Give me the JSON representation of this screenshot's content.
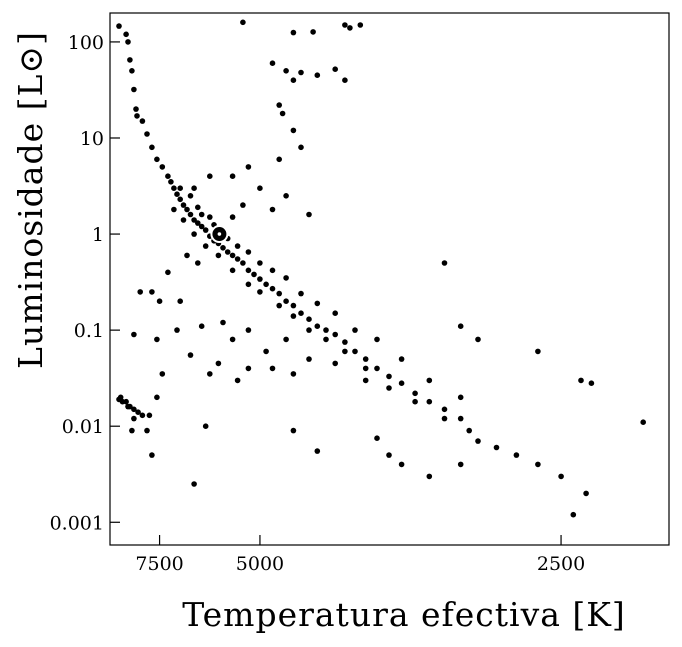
{
  "chart_data": {
    "type": "scatter",
    "title": "",
    "xlabel": "Temperatura efectiva [K]",
    "ylabel": "Luminosidade [L⊙]",
    "x_scale": "reciprocal",
    "y_scale": "log",
    "xlim": [
      9960,
      2120
    ],
    "ylim": [
      0.00058,
      200
    ],
    "x_ticks": [
      7500,
      5000,
      2500
    ],
    "x_tick_labels": [
      "7500",
      "5000",
      "2500"
    ],
    "y_ticks": [
      0.001,
      0.01,
      0.1,
      1,
      10,
      100
    ],
    "y_tick_labels": [
      "0.001",
      "0.01",
      "0.1",
      "1",
      "10",
      "100"
    ],
    "grid": false,
    "legend": "none",
    "marker_color": "#000000",
    "sun": {
      "x": 5778,
      "y": 1.0,
      "label": "⊙"
    },
    "series": [
      {
        "values_format": "[temperature K, luminosity L⊙]",
        "points": [
          [
            9400,
            146
          ],
          [
            9000,
            120
          ],
          [
            8900,
            100
          ],
          [
            8800,
            65
          ],
          [
            8700,
            50
          ],
          [
            8600,
            32
          ],
          [
            8500,
            20
          ],
          [
            8450,
            17
          ],
          [
            8200,
            15
          ],
          [
            8000,
            11
          ],
          [
            7800,
            8
          ],
          [
            7600,
            6
          ],
          [
            7400,
            5
          ],
          [
            7200,
            4
          ],
          [
            7100,
            3.5
          ],
          [
            7000,
            3
          ],
          [
            6900,
            2.6
          ],
          [
            6800,
            2.3
          ],
          [
            6700,
            2.0
          ],
          [
            6600,
            1.8
          ],
          [
            6500,
            1.6
          ],
          [
            6400,
            1.4
          ],
          [
            6300,
            1.3
          ],
          [
            6200,
            1.2
          ],
          [
            6100,
            1.1
          ],
          [
            6000,
            0.95
          ],
          [
            5900,
            0.85
          ],
          [
            5800,
            0.8
          ],
          [
            5700,
            0.72
          ],
          [
            5600,
            0.65
          ],
          [
            5500,
            0.6
          ],
          [
            5400,
            0.55
          ],
          [
            5300,
            0.5
          ],
          [
            5200,
            0.42
          ],
          [
            5100,
            0.38
          ],
          [
            5000,
            0.34
          ],
          [
            4900,
            0.3
          ],
          [
            4800,
            0.27
          ],
          [
            4700,
            0.24
          ],
          [
            4600,
            0.2
          ],
          [
            4500,
            0.18
          ],
          [
            4400,
            0.15
          ],
          [
            4300,
            0.13
          ],
          [
            4200,
            0.11
          ],
          [
            4100,
            0.1
          ],
          [
            4000,
            0.09
          ],
          [
            3900,
            0.075
          ],
          [
            3800,
            0.06
          ],
          [
            3700,
            0.05
          ],
          [
            3600,
            0.04
          ],
          [
            3500,
            0.033
          ],
          [
            3400,
            0.028
          ],
          [
            3300,
            0.022
          ],
          [
            3200,
            0.018
          ],
          [
            3100,
            0.015
          ],
          [
            3000,
            0.012
          ],
          [
            2950,
            0.009
          ],
          [
            2900,
            0.007
          ],
          [
            6800,
            3
          ],
          [
            6500,
            2.5
          ],
          [
            6300,
            1.9
          ],
          [
            6200,
            1.6
          ],
          [
            6000,
            1.5
          ],
          [
            5900,
            1.25
          ],
          [
            5600,
            0.9
          ],
          [
            5400,
            0.75
          ],
          [
            5200,
            0.65
          ],
          [
            5000,
            0.5
          ],
          [
            4800,
            0.42
          ],
          [
            4600,
            0.35
          ],
          [
            4400,
            0.24
          ],
          [
            4200,
            0.19
          ],
          [
            4000,
            0.15
          ],
          [
            3800,
            0.1
          ],
          [
            3600,
            0.08
          ],
          [
            3400,
            0.05
          ],
          [
            3200,
            0.03
          ],
          [
            3000,
            0.02
          ],
          [
            7000,
            1.8
          ],
          [
            6700,
            1.4
          ],
          [
            6400,
            1.0
          ],
          [
            6100,
            0.75
          ],
          [
            5800,
            0.6
          ],
          [
            5500,
            0.42
          ],
          [
            5200,
            0.3
          ],
          [
            5000,
            0.25
          ],
          [
            4700,
            0.18
          ],
          [
            4500,
            0.14
          ],
          [
            4300,
            0.1
          ],
          [
            4100,
            0.08
          ],
          [
            3900,
            0.06
          ],
          [
            3700,
            0.04
          ],
          [
            3500,
            0.025
          ],
          [
            3300,
            0.018
          ],
          [
            3100,
            0.012
          ],
          [
            6300,
            0.5
          ],
          [
            6600,
            0.6
          ],
          [
            7200,
            0.4
          ],
          [
            7800,
            0.25
          ],
          [
            8300,
            0.25
          ],
          [
            7500,
            0.2
          ],
          [
            6800,
            0.2
          ],
          [
            6200,
            0.11
          ],
          [
            5700,
            0.12
          ],
          [
            5500,
            0.08
          ],
          [
            5200,
            0.1
          ],
          [
            4900,
            0.06
          ],
          [
            4600,
            0.08
          ],
          [
            4300,
            0.05
          ],
          [
            6900,
            0.1
          ],
          [
            7600,
            0.08
          ],
          [
            8600,
            0.09
          ],
          [
            6500,
            0.055
          ],
          [
            6000,
            0.035
          ],
          [
            5800,
            0.045
          ],
          [
            5400,
            0.03
          ],
          [
            5200,
            0.04
          ],
          [
            4800,
            0.04
          ],
          [
            4500,
            0.035
          ],
          [
            7400,
            0.035
          ],
          [
            4000,
            0.045
          ],
          [
            3700,
            0.03
          ],
          [
            9400,
            0.019
          ],
          [
            9300,
            0.02
          ],
          [
            9200,
            0.018
          ],
          [
            9000,
            0.018
          ],
          [
            8900,
            0.016
          ],
          [
            8800,
            0.016
          ],
          [
            8600,
            0.015
          ],
          [
            8400,
            0.014
          ],
          [
            8200,
            0.013
          ],
          [
            7900,
            0.013
          ],
          [
            8600,
            0.012
          ],
          [
            8700,
            0.009
          ],
          [
            8000,
            0.009
          ],
          [
            7600,
            0.02
          ],
          [
            6100,
            0.01
          ],
          [
            4500,
            0.009
          ],
          [
            7800,
            0.005
          ],
          [
            4200,
            0.0055
          ],
          [
            3600,
            0.0075
          ],
          [
            3500,
            0.005
          ],
          [
            3400,
            0.004
          ],
          [
            3200,
            0.003
          ],
          [
            3000,
            0.004
          ],
          [
            2800,
            0.006
          ],
          [
            2700,
            0.005
          ],
          [
            2600,
            0.004
          ],
          [
            2500,
            0.003
          ],
          [
            6400,
            0.0025
          ],
          [
            2400,
            0.002
          ],
          [
            2450,
            0.0012
          ],
          [
            2200,
            0.011
          ],
          [
            2380,
            0.028
          ],
          [
            2420,
            0.03
          ],
          [
            2600,
            0.06
          ],
          [
            2900,
            0.08
          ],
          [
            3000,
            0.11
          ],
          [
            5300,
            160
          ],
          [
            4500,
            125
          ],
          [
            4250,
            127
          ],
          [
            3850,
            140
          ],
          [
            3900,
            150
          ],
          [
            3750,
            150
          ],
          [
            4800,
            60
          ],
          [
            4600,
            50
          ],
          [
            4400,
            48
          ],
          [
            4500,
            40
          ],
          [
            4200,
            45
          ],
          [
            4000,
            52
          ],
          [
            3900,
            40
          ],
          [
            4700,
            22
          ],
          [
            4650,
            18
          ],
          [
            4500,
            12
          ],
          [
            4400,
            8
          ],
          [
            4700,
            6
          ],
          [
            5000,
            3
          ],
          [
            5300,
            2
          ],
          [
            5500,
            1.5
          ],
          [
            4600,
            2.5
          ],
          [
            4800,
            1.8
          ],
          [
            5200,
            5
          ],
          [
            5500,
            4
          ],
          [
            6000,
            4
          ],
          [
            6400,
            3
          ],
          [
            3100,
            0.5
          ],
          [
            4300,
            1.6
          ]
        ]
      }
    ]
  }
}
